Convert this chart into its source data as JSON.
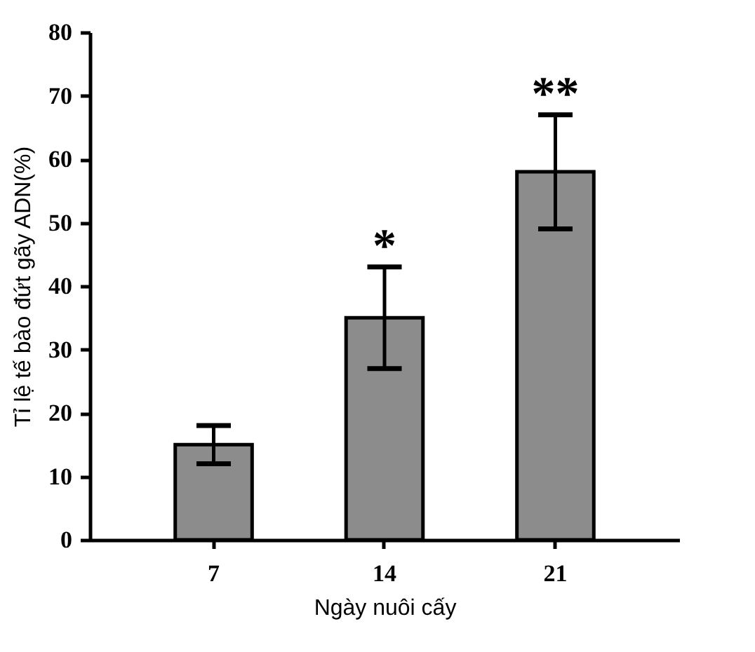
{
  "chart_data": {
    "type": "bar",
    "xlabel": "Ngày nuôi cấy",
    "ylabel": "Tỉ lệ tế bào đứt gãy ADN(%)",
    "categories": [
      "7",
      "14",
      "21"
    ],
    "values": [
      15,
      35,
      58
    ],
    "errors": [
      3,
      8,
      9
    ],
    "color": "#8c8c8c",
    "ylim": [
      0,
      80
    ],
    "yticks": [
      0,
      10,
      20,
      30,
      40,
      50,
      60,
      70,
      80
    ],
    "annotations": [
      {
        "text": "*",
        "x": "14",
        "y": 43
      },
      {
        "text": "**",
        "x": "21",
        "y": 67
      }
    ]
  }
}
